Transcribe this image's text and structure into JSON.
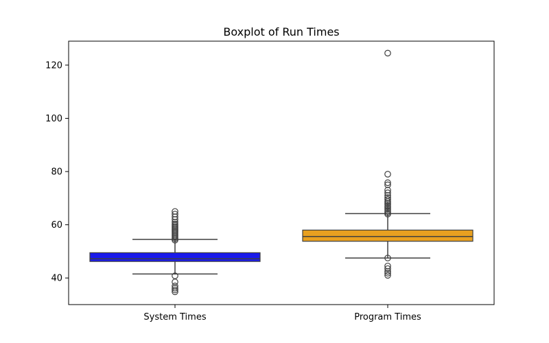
{
  "chart_data": {
    "type": "boxplot",
    "title": "Boxplot of Run Times",
    "xlabel": "",
    "ylabel": "",
    "ylim": [
      30,
      129
    ],
    "yticks": [
      40,
      60,
      80,
      100,
      120
    ],
    "grid": false,
    "categories": [
      "System Times",
      "Program Times"
    ],
    "series": [
      {
        "category": "System Times",
        "color": "#1a1aea",
        "whisker_low": 41.5,
        "q1": 46.2,
        "median": 47.2,
        "q3": 49.5,
        "whisker_high": 54.5,
        "outliers": [
          34.8,
          35.5,
          36.2,
          37.0,
          38.5,
          40.8,
          54.2,
          54.8,
          55.3,
          55.8,
          56.3,
          56.8,
          57.3,
          57.8,
          58.3,
          58.8,
          59.3,
          59.8,
          60.3,
          61.0,
          62.0,
          63.0,
          64.0,
          65.0
        ]
      },
      {
        "category": "Program Times",
        "color": "#e8a020",
        "whisker_low": 47.5,
        "q1": 53.8,
        "median": 55.6,
        "q3": 58.0,
        "whisker_high": 64.2,
        "outliers": [
          41.0,
          41.8,
          42.5,
          43.5,
          44.5,
          47.5,
          64.0,
          64.6,
          65.2,
          65.8,
          66.4,
          67.0,
          67.6,
          68.2,
          68.8,
          69.5,
          70.2,
          71.0,
          72.0,
          73.0,
          75.0,
          75.8,
          79.0,
          124.5
        ]
      }
    ]
  }
}
